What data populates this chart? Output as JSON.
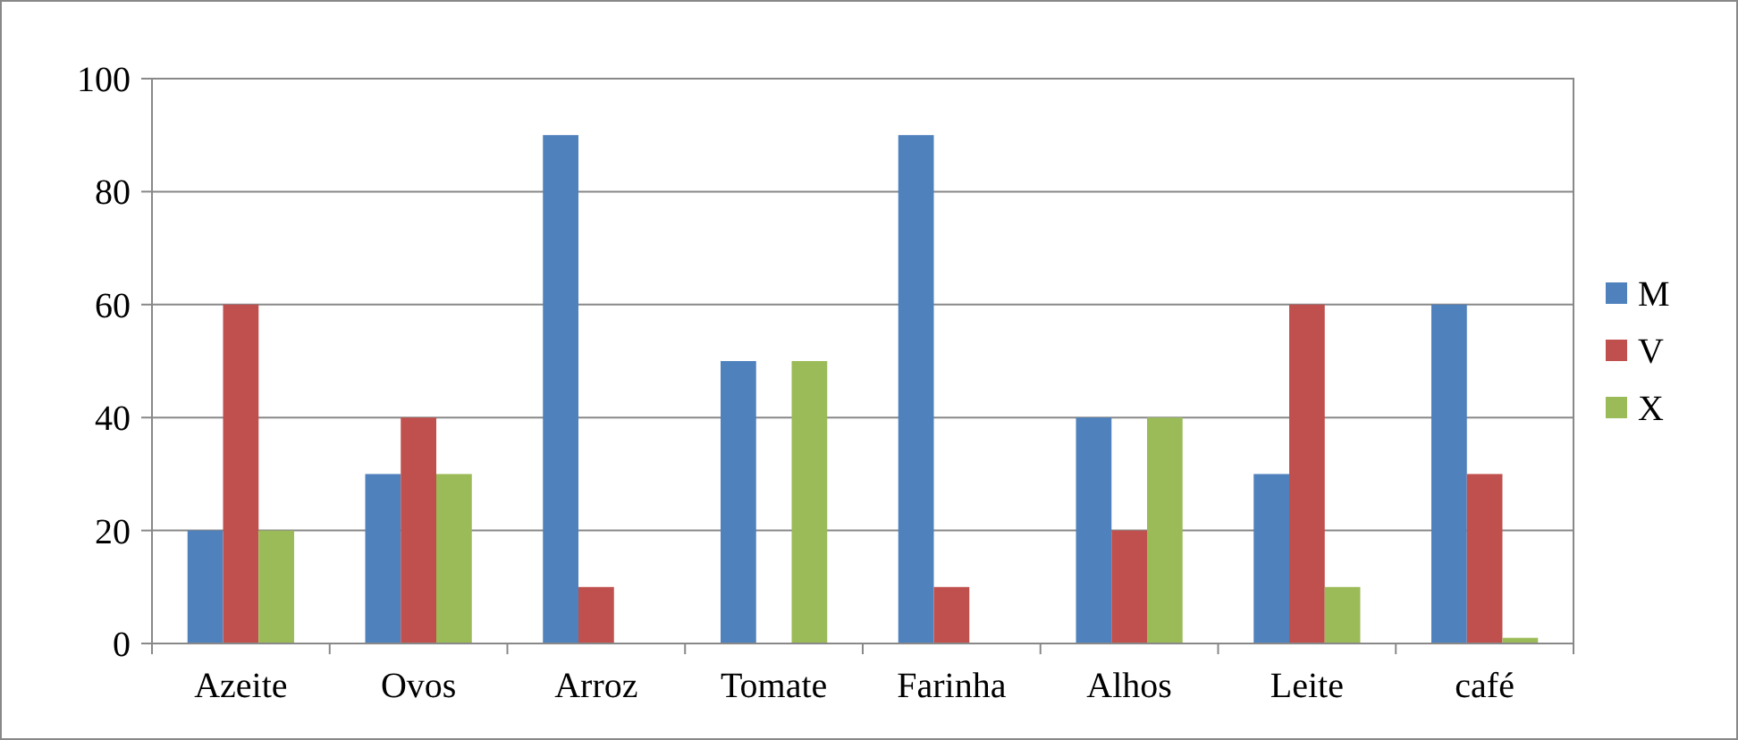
{
  "chart_data": {
    "type": "bar",
    "categories": [
      "Azeite",
      "Ovos",
      "Arroz",
      "Tomate",
      "Farinha",
      "Alhos",
      "Leite",
      "café"
    ],
    "series": [
      {
        "name": "M",
        "color": "#4f81bd",
        "values": [
          20,
          30,
          90,
          50,
          90,
          40,
          30,
          60
        ]
      },
      {
        "name": "V",
        "color": "#c0504d",
        "values": [
          60,
          40,
          10,
          0,
          10,
          20,
          60,
          30
        ]
      },
      {
        "name": "X",
        "color": "#9bbb59",
        "values": [
          20,
          30,
          0,
          50,
          0,
          40,
          10,
          1
        ]
      }
    ],
    "ylim": [
      0,
      100
    ],
    "yticks": [
      0,
      20,
      40,
      60,
      80,
      100
    ],
    "grid": "y",
    "legend": "right"
  }
}
